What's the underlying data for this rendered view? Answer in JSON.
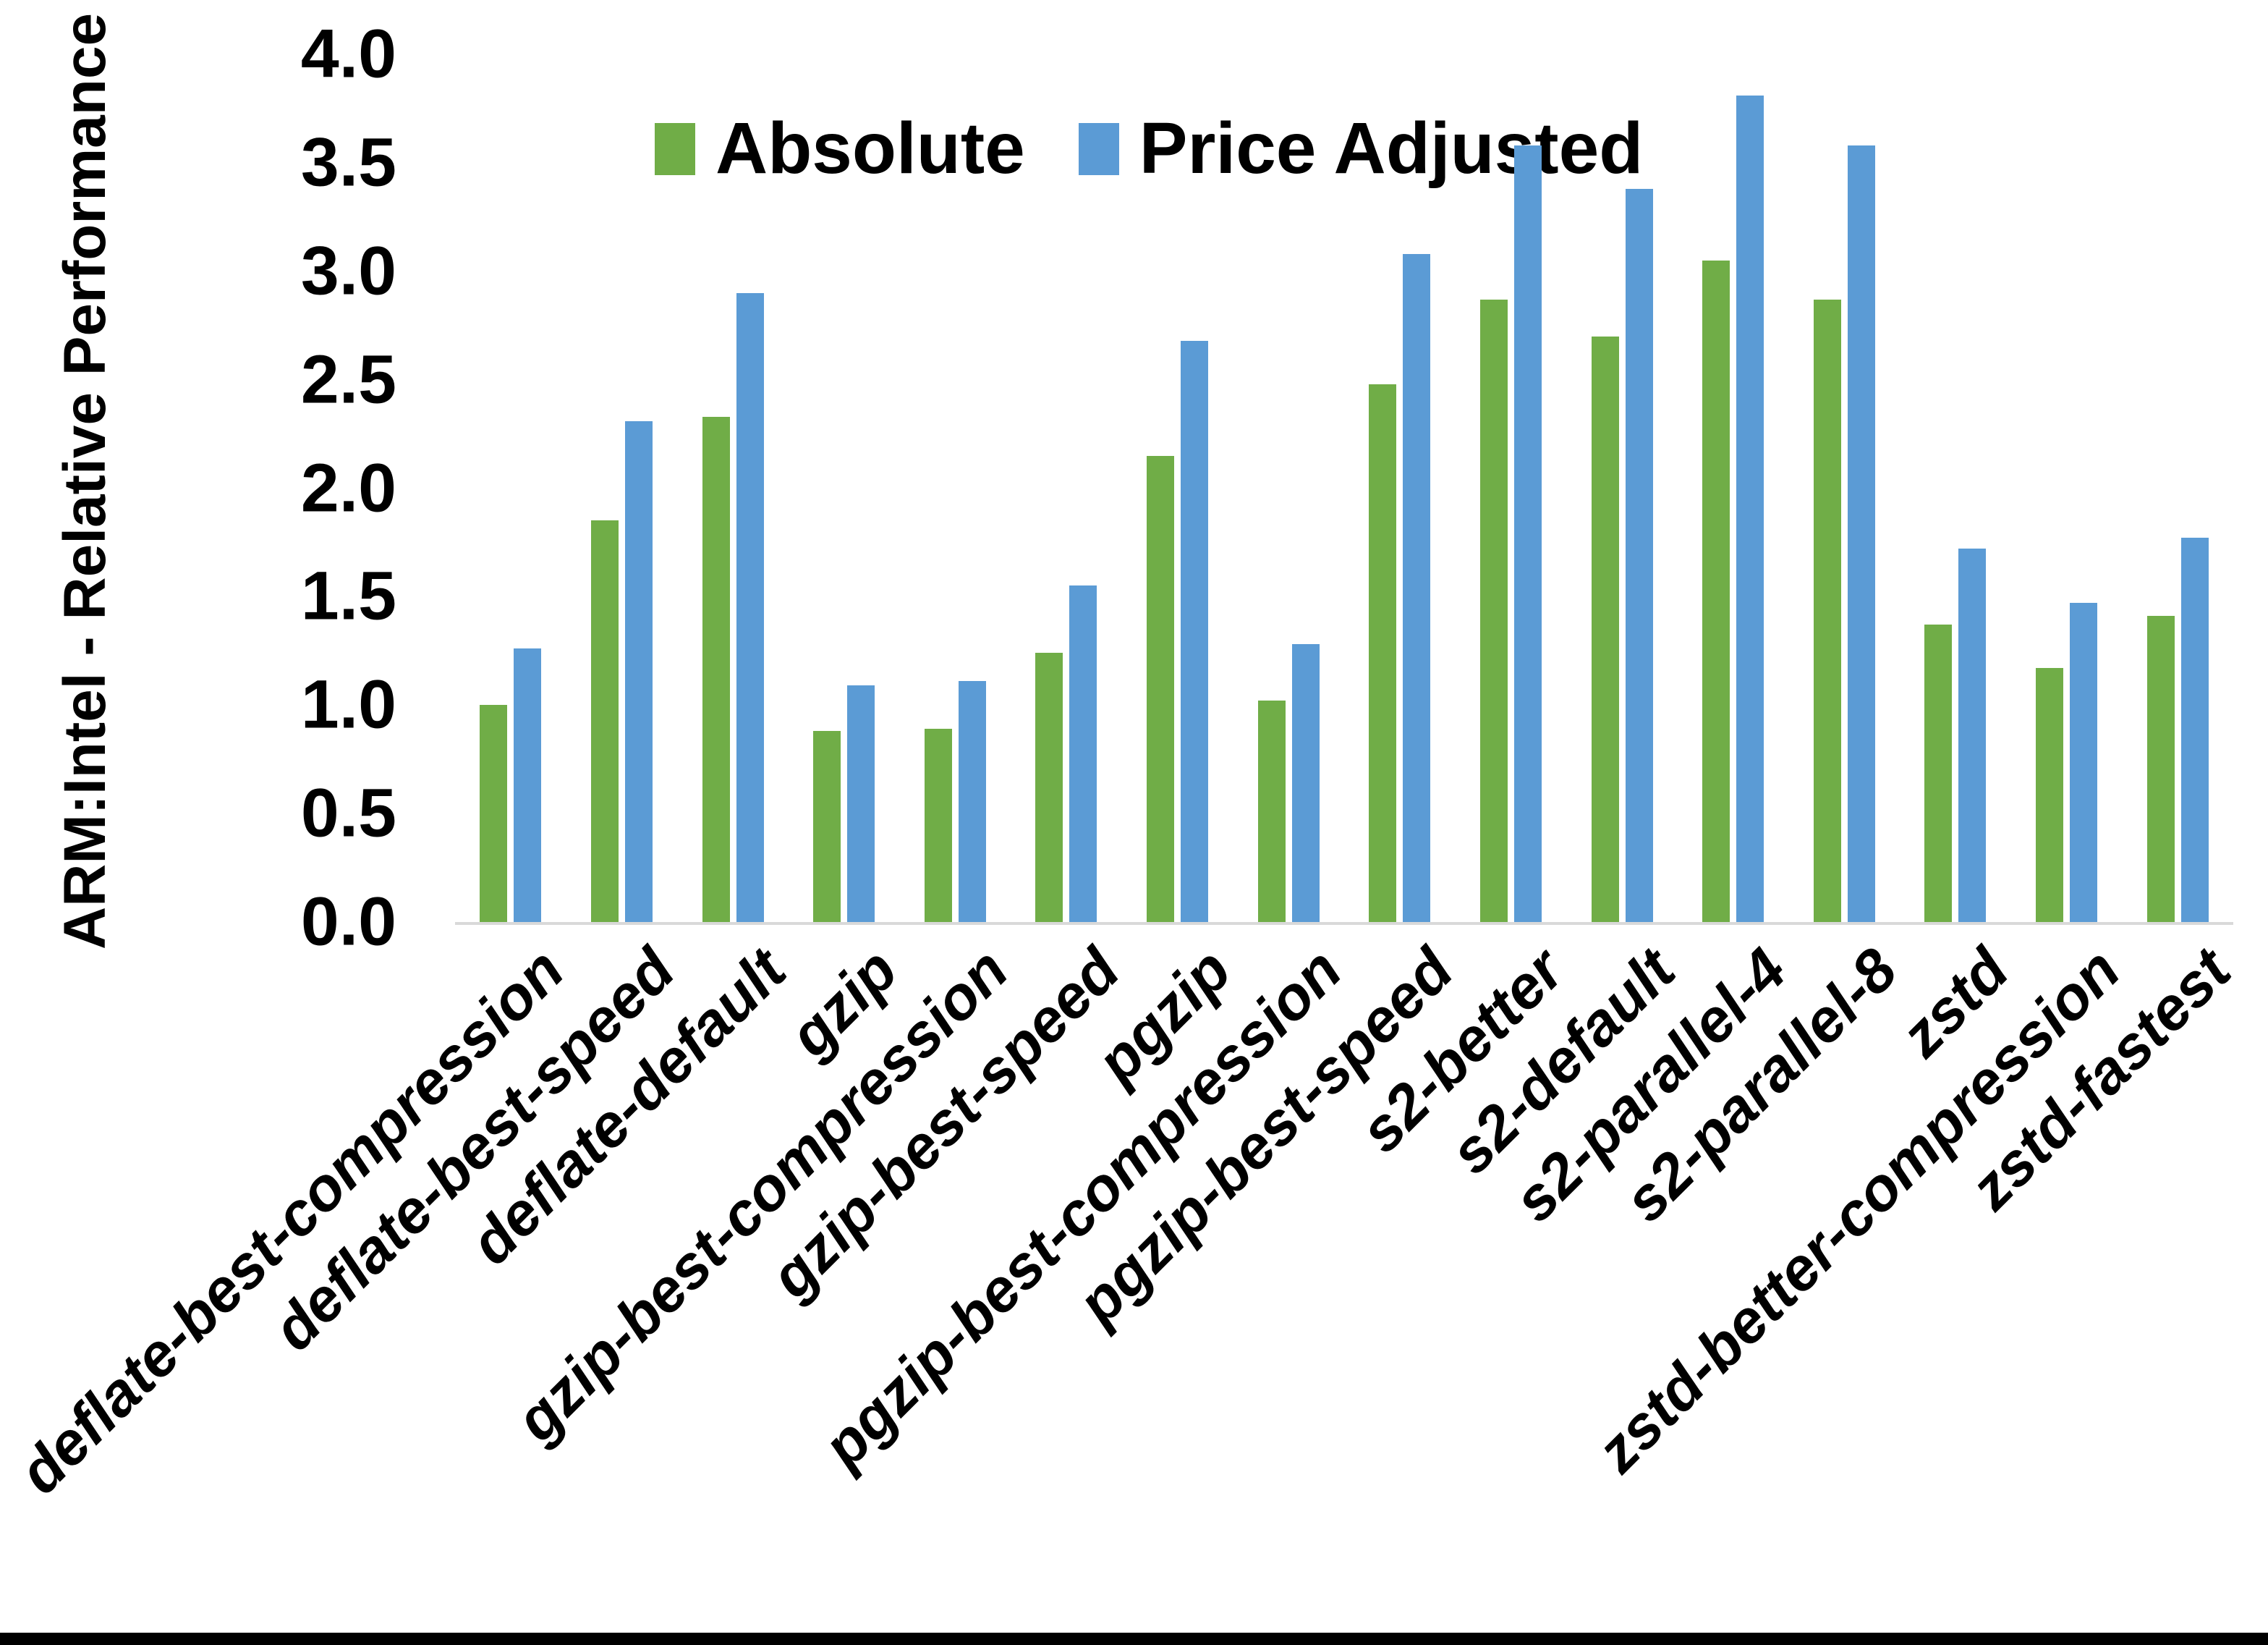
{
  "colors": {
    "background": "#FFFFFF",
    "axis_line": "#D9D9D9",
    "text": "#000000",
    "bottom_border": "#000000",
    "absolute_series": "#70AD47",
    "price_adjusted_series": "#5B9BD5"
  },
  "chart_data": {
    "type": "bar",
    "title": "",
    "xlabel": "",
    "ylabel": "ARM:Intel - Relative Performance",
    "ylim": [
      0.0,
      4.0
    ],
    "yticks": [
      "0.0",
      "0.5",
      "1.0",
      "1.5",
      "2.0",
      "2.5",
      "3.0",
      "3.5",
      "4.0"
    ],
    "grid": false,
    "legend_position": "top",
    "x_tick_rotation_deg": 45,
    "categories": [
      "deflate-best-compression",
      "deflate-best-speed",
      "deflate-default",
      "gzip",
      "gzip-best-compression",
      "gzip-best-speed",
      "pgzip",
      "pgzip-best-compression",
      "pgzip-best-speed",
      "s2-better",
      "s2-default",
      "s2-parallel-4",
      "s2-parallel-8",
      "zstd",
      "zstd-better-compression",
      "zstd-fastest"
    ],
    "series": [
      {
        "name": "Absolute",
        "color": "#70AD47",
        "values": [
          1.0,
          1.85,
          2.33,
          0.88,
          0.89,
          1.24,
          2.15,
          1.02,
          2.48,
          2.87,
          2.7,
          3.05,
          2.87,
          1.37,
          1.17,
          1.41
        ]
      },
      {
        "name": "Price Adjusted",
        "color": "#5B9BD5",
        "values": [
          1.26,
          2.31,
          2.9,
          1.09,
          1.11,
          1.55,
          2.68,
          1.28,
          3.08,
          3.58,
          3.38,
          3.81,
          3.58,
          1.72,
          1.47,
          1.77
        ]
      }
    ]
  }
}
